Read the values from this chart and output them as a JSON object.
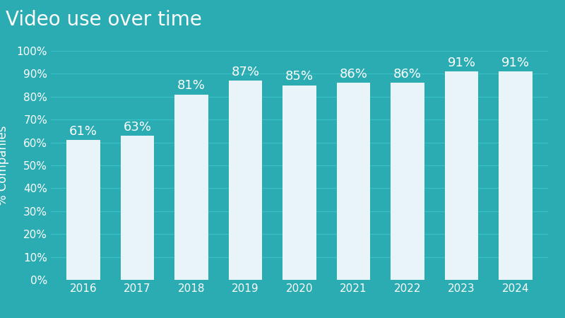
{
  "title": "Video use over time",
  "years": [
    "2016",
    "2017",
    "2018",
    "2019",
    "2020",
    "2021",
    "2022",
    "2023",
    "2024"
  ],
  "values": [
    61,
    63,
    81,
    87,
    85,
    86,
    86,
    91,
    91
  ],
  "bar_color": "#e8f4f8",
  "background_color": "#2aacb2",
  "text_color": "#ffffff",
  "grid_color": "#3bbfc6",
  "ylabel": "% Companies",
  "ylim": [
    0,
    100
  ],
  "yticks": [
    0,
    10,
    20,
    30,
    40,
    50,
    60,
    70,
    80,
    90,
    100
  ],
  "title_fontsize": 20,
  "label_fontsize": 12,
  "tick_fontsize": 11,
  "bar_label_fontsize": 13
}
